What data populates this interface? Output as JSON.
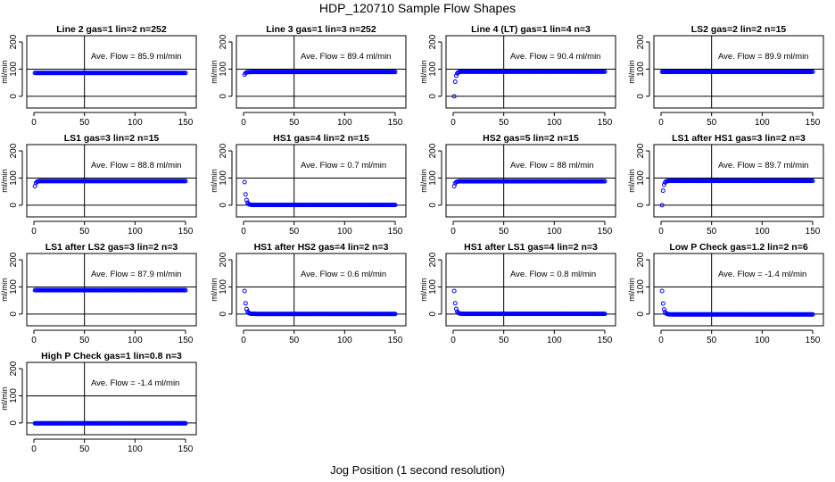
{
  "figure": {
    "title": "HDP_120710  Sample Flow Shapes",
    "xlabel": "Jog Position (1 second resolution)"
  },
  "chart_data": [
    {
      "type": "scatter",
      "title": "Line 2 gas=1 lin=2 n=252",
      "annotation": "Ave. Flow =  85.9  ml/min",
      "ylabel": "ml/min",
      "xlim": [
        0,
        150
      ],
      "ylim": [
        -30,
        210
      ],
      "xticks": [
        0,
        50,
        100,
        150
      ],
      "yticks": [
        0,
        100,
        200
      ],
      "hlines": [
        100,
        0
      ],
      "vline": 50,
      "profile": "flat",
      "series": [
        {
          "start": 85.9,
          "plateau": 85.9
        }
      ],
      "grid": false,
      "color": "#0000ff"
    },
    {
      "type": "scatter",
      "title": "Line 3 gas=1 lin=3 n=252",
      "annotation": "Ave. Flow =  89.4  ml/min",
      "ylabel": "ml/min",
      "xlim": [
        0,
        150
      ],
      "ylim": [
        -30,
        210
      ],
      "xticks": [
        0,
        50,
        100,
        150
      ],
      "yticks": [
        0,
        100,
        200
      ],
      "hlines": [
        100,
        0
      ],
      "vline": 50,
      "profile": "rise",
      "series": [
        {
          "start": 80,
          "plateau": 89.4
        }
      ],
      "grid": false,
      "color": "#0000ff"
    },
    {
      "type": "scatter",
      "title": "Line 4 (LT) gas=1 lin=4 n=3",
      "annotation": "Ave. Flow =  90.4  ml/min",
      "ylabel": "ml/min",
      "xlim": [
        0,
        150
      ],
      "ylim": [
        -30,
        210
      ],
      "xticks": [
        0,
        50,
        100,
        150
      ],
      "yticks": [
        0,
        100,
        200
      ],
      "hlines": [
        100,
        0
      ],
      "vline": 50,
      "profile": "rise",
      "series": [
        {
          "start": 0,
          "plateau": 90.4
        }
      ],
      "grid": false,
      "color": "#0000ff"
    },
    {
      "type": "scatter",
      "title": "LS2 gas=2 lin=2 n=15",
      "annotation": "Ave. Flow =  89.9  ml/min",
      "ylabel": "ml/min",
      "xlim": [
        0,
        150
      ],
      "ylim": [
        -30,
        210
      ],
      "xticks": [
        0,
        50,
        100,
        150
      ],
      "yticks": [
        0,
        100,
        200
      ],
      "hlines": [
        100,
        0
      ],
      "vline": 50,
      "profile": "flat",
      "series": [
        {
          "start": 89.9,
          "plateau": 89.9
        }
      ],
      "grid": false,
      "color": "#0000ff"
    },
    {
      "type": "scatter",
      "title": "LS1 gas=3 lin=2 n=15",
      "annotation": "Ave. Flow =  88.8  ml/min",
      "ylabel": "ml/min",
      "xlim": [
        0,
        150
      ],
      "ylim": [
        -30,
        210
      ],
      "xticks": [
        0,
        50,
        100,
        150
      ],
      "yticks": [
        0,
        100,
        200
      ],
      "hlines": [
        100,
        0
      ],
      "vline": 50,
      "profile": "rise",
      "series": [
        {
          "start": 70,
          "plateau": 88.8
        }
      ],
      "grid": false,
      "color": "#0000ff"
    },
    {
      "type": "scatter",
      "title": "HS1 gas=4 lin=2 n=15",
      "annotation": "Ave. Flow =  0.7  ml/min",
      "ylabel": "ml/min",
      "xlim": [
        0,
        150
      ],
      "ylim": [
        -30,
        210
      ],
      "xticks": [
        0,
        50,
        100,
        150
      ],
      "yticks": [
        0,
        100,
        200
      ],
      "hlines": [
        100,
        0
      ],
      "vline": 50,
      "profile": "decay",
      "series": [
        {
          "start": 85,
          "plateau": 0.7
        }
      ],
      "grid": false,
      "color": "#0000ff"
    },
    {
      "type": "scatter",
      "title": "HS2 gas=5 lin=2 n=15",
      "annotation": "Ave. Flow =  88  ml/min",
      "ylabel": "ml/min",
      "xlim": [
        0,
        150
      ],
      "ylim": [
        -30,
        210
      ],
      "xticks": [
        0,
        50,
        100,
        150
      ],
      "yticks": [
        0,
        100,
        200
      ],
      "hlines": [
        100,
        0
      ],
      "vline": 50,
      "profile": "rise",
      "series": [
        {
          "start": 70,
          "plateau": 88
        }
      ],
      "grid": false,
      "color": "#0000ff"
    },
    {
      "type": "scatter",
      "title": "LS1 after HS1 gas=3 lin=2 n=3",
      "annotation": "Ave. Flow =  89.7  ml/min",
      "ylabel": "ml/min",
      "xlim": [
        0,
        150
      ],
      "ylim": [
        -30,
        210
      ],
      "xticks": [
        0,
        50,
        100,
        150
      ],
      "yticks": [
        0,
        100,
        200
      ],
      "hlines": [
        100,
        0
      ],
      "vline": 50,
      "profile": "rise",
      "series": [
        {
          "start": 0,
          "plateau": 89.7
        }
      ],
      "grid": false,
      "color": "#0000ff"
    },
    {
      "type": "scatter",
      "title": "LS1 after LS2 gas=3 lin=2 n=3",
      "annotation": "Ave. Flow =  87.9  ml/min",
      "ylabel": "ml/min",
      "xlim": [
        0,
        150
      ],
      "ylim": [
        -30,
        210
      ],
      "xticks": [
        0,
        50,
        100,
        150
      ],
      "yticks": [
        0,
        100,
        200
      ],
      "hlines": [
        100,
        0
      ],
      "vline": 50,
      "profile": "flat",
      "series": [
        {
          "start": 87.9,
          "plateau": 87.9
        }
      ],
      "grid": false,
      "color": "#0000ff"
    },
    {
      "type": "scatter",
      "title": "HS1 after HS2 gas=4 lin=2 n=3",
      "annotation": "Ave. Flow =  0.6  ml/min",
      "ylabel": "ml/min",
      "xlim": [
        0,
        150
      ],
      "ylim": [
        -30,
        210
      ],
      "xticks": [
        0,
        50,
        100,
        150
      ],
      "yticks": [
        0,
        100,
        200
      ],
      "hlines": [
        100,
        0
      ],
      "vline": 50,
      "profile": "decay",
      "series": [
        {
          "start": 85,
          "plateau": 0.6
        }
      ],
      "grid": false,
      "color": "#0000ff"
    },
    {
      "type": "scatter",
      "title": "HS1 after LS1 gas=4 lin=2 n=3",
      "annotation": "Ave. Flow =  0.8  ml/min",
      "ylabel": "ml/min",
      "xlim": [
        0,
        150
      ],
      "ylim": [
        -30,
        210
      ],
      "xticks": [
        0,
        50,
        100,
        150
      ],
      "yticks": [
        0,
        100,
        200
      ],
      "hlines": [
        100,
        0
      ],
      "vline": 50,
      "profile": "decay",
      "series": [
        {
          "start": 85,
          "plateau": 0.8
        }
      ],
      "grid": false,
      "color": "#0000ff"
    },
    {
      "type": "scatter",
      "title": "Low P Check gas=1.2 lin=2 n=6",
      "annotation": "Ave. Flow =  -1.4  ml/min",
      "ylabel": "ml/min",
      "xlim": [
        0,
        150
      ],
      "ylim": [
        -30,
        210
      ],
      "xticks": [
        0,
        50,
        100,
        150
      ],
      "yticks": [
        0,
        100,
        200
      ],
      "hlines": [
        100,
        0
      ],
      "vline": 50,
      "profile": "decay",
      "series": [
        {
          "start": 85,
          "plateau": -1.4
        }
      ],
      "grid": false,
      "color": "#0000ff"
    },
    {
      "type": "scatter",
      "title": "High P Check gas=1 lin=0.8 n=3",
      "annotation": "Ave. Flow =  -1.4  ml/min",
      "ylabel": "ml/min",
      "xlim": [
        0,
        150
      ],
      "ylim": [
        -30,
        210
      ],
      "xticks": [
        0,
        50,
        100,
        150
      ],
      "yticks": [
        0,
        100,
        200
      ],
      "hlines": [
        100,
        0
      ],
      "vline": 50,
      "profile": "flat",
      "series": [
        {
          "start": -1.4,
          "plateau": -1.4
        }
      ],
      "grid": false,
      "color": "#0000ff"
    }
  ]
}
